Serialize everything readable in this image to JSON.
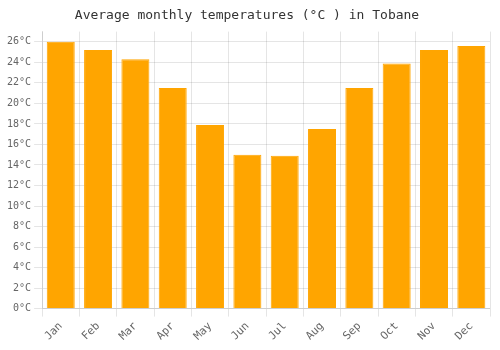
{
  "chart_data": {
    "type": "bar",
    "title": "Average monthly temperatures (°C ) in Tobane",
    "categories": [
      "Jan",
      "Feb",
      "Mar",
      "Apr",
      "May",
      "Jun",
      "Jul",
      "Aug",
      "Sep",
      "Oct",
      "Nov",
      "Dec"
    ],
    "values": [
      26.0,
      25.2,
      24.3,
      21.5,
      17.9,
      15.0,
      14.9,
      17.5,
      21.5,
      23.9,
      25.2,
      25.6
    ],
    "color": "#FFA500",
    "ylim": [
      0,
      27
    ],
    "yticks": [
      {
        "value": 0,
        "label": "0°C"
      },
      {
        "value": 2,
        "label": "2°C"
      },
      {
        "value": 4,
        "label": "4°C"
      },
      {
        "value": 6,
        "label": "6°C"
      },
      {
        "value": 8,
        "label": "8°C"
      },
      {
        "value": 10,
        "label": "10°C"
      },
      {
        "value": 12,
        "label": "12°C"
      },
      {
        "value": 14,
        "label": "14°C"
      },
      {
        "value": 16,
        "label": "16°C"
      },
      {
        "value": 18,
        "label": "18°C"
      },
      {
        "value": 20,
        "label": "20°C"
      },
      {
        "value": 22,
        "label": "22°C"
      },
      {
        "value": 24,
        "label": "24°C"
      },
      {
        "value": 26,
        "label": "26°C"
      }
    ],
    "grid": true
  }
}
